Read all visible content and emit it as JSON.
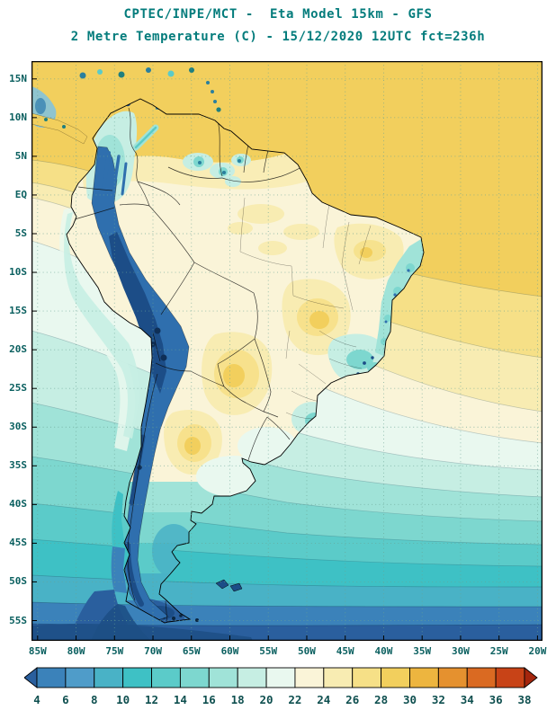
{
  "header": {
    "title_line1": "CPTEC/INPE/MCT -  Eta Model 15km - GFS",
    "title_line2": "2 Metre Temperature (C) - 15/12/2020 12UTC fct=236h",
    "title_color": "#047c7c"
  },
  "map": {
    "lat_labels": [
      "15N",
      "10N",
      "5N",
      "EQ",
      "5S",
      "10S",
      "15S",
      "20S",
      "25S",
      "30S",
      "35S",
      "40S",
      "45S",
      "50S",
      "55S"
    ],
    "lon_labels": [
      "85W",
      "80W",
      "75W",
      "70W",
      "65W",
      "60W",
      "55W",
      "50W",
      "45W",
      "40W",
      "35W",
      "30W",
      "25W",
      "20W"
    ]
  },
  "colorbar": {
    "tick_labels": [
      "4",
      "6",
      "8",
      "10",
      "12",
      "14",
      "16",
      "18",
      "20",
      "22",
      "24",
      "26",
      "28",
      "30",
      "32",
      "34",
      "36",
      "38"
    ],
    "colors": [
      "#2a5f9e",
      "#3b82ba",
      "#4f9cc9",
      "#49b2c6",
      "#3ec1c5",
      "#5bcbc9",
      "#7dd7cf",
      "#a0e3d8",
      "#c6eee3",
      "#e9f8ef",
      "#faf4d8",
      "#f8ecb2",
      "#f6e087",
      "#f2cf5d",
      "#edb53f",
      "#e5912f",
      "#da6a22",
      "#c84317",
      "#a5260d"
    ]
  },
  "chart_data": {
    "type": "heatmap",
    "title": "2 Metre Temperature (C)",
    "institution": "CPTEC/INPE/MCT",
    "model": "Eta Model 15km - GFS",
    "valid_time": "15/12/2020 12UTC",
    "forecast": "fct=236h",
    "x_tick_labels": [
      "85W",
      "80W",
      "75W",
      "70W",
      "65W",
      "60W",
      "55W",
      "50W",
      "45W",
      "40W",
      "35W",
      "30W",
      "25W",
      "20W"
    ],
    "y_tick_labels": [
      "15N",
      "10N",
      "5N",
      "EQ",
      "5S",
      "10S",
      "15S",
      "20S",
      "25S",
      "30S",
      "35S",
      "40S",
      "45S",
      "50S",
      "55S"
    ],
    "colorbar_levels_celsius": [
      4,
      6,
      8,
      10,
      12,
      14,
      16,
      18,
      20,
      22,
      24,
      26,
      28,
      30,
      32,
      34,
      36,
      38
    ],
    "colorbar_colors": [
      "#2a5f9e",
      "#3b82ba",
      "#4f9cc9",
      "#49b2c6",
      "#3ec1c5",
      "#5bcbc9",
      "#7dd7cf",
      "#a0e3d8",
      "#c6eee3",
      "#e9f8ef",
      "#faf4d8",
      "#f8ecb2",
      "#f6e087",
      "#f2cf5d",
      "#edb53f",
      "#e5912f",
      "#da6a22",
      "#c84317",
      "#a5260d"
    ],
    "grid": true,
    "legend_position": "bottom"
  }
}
